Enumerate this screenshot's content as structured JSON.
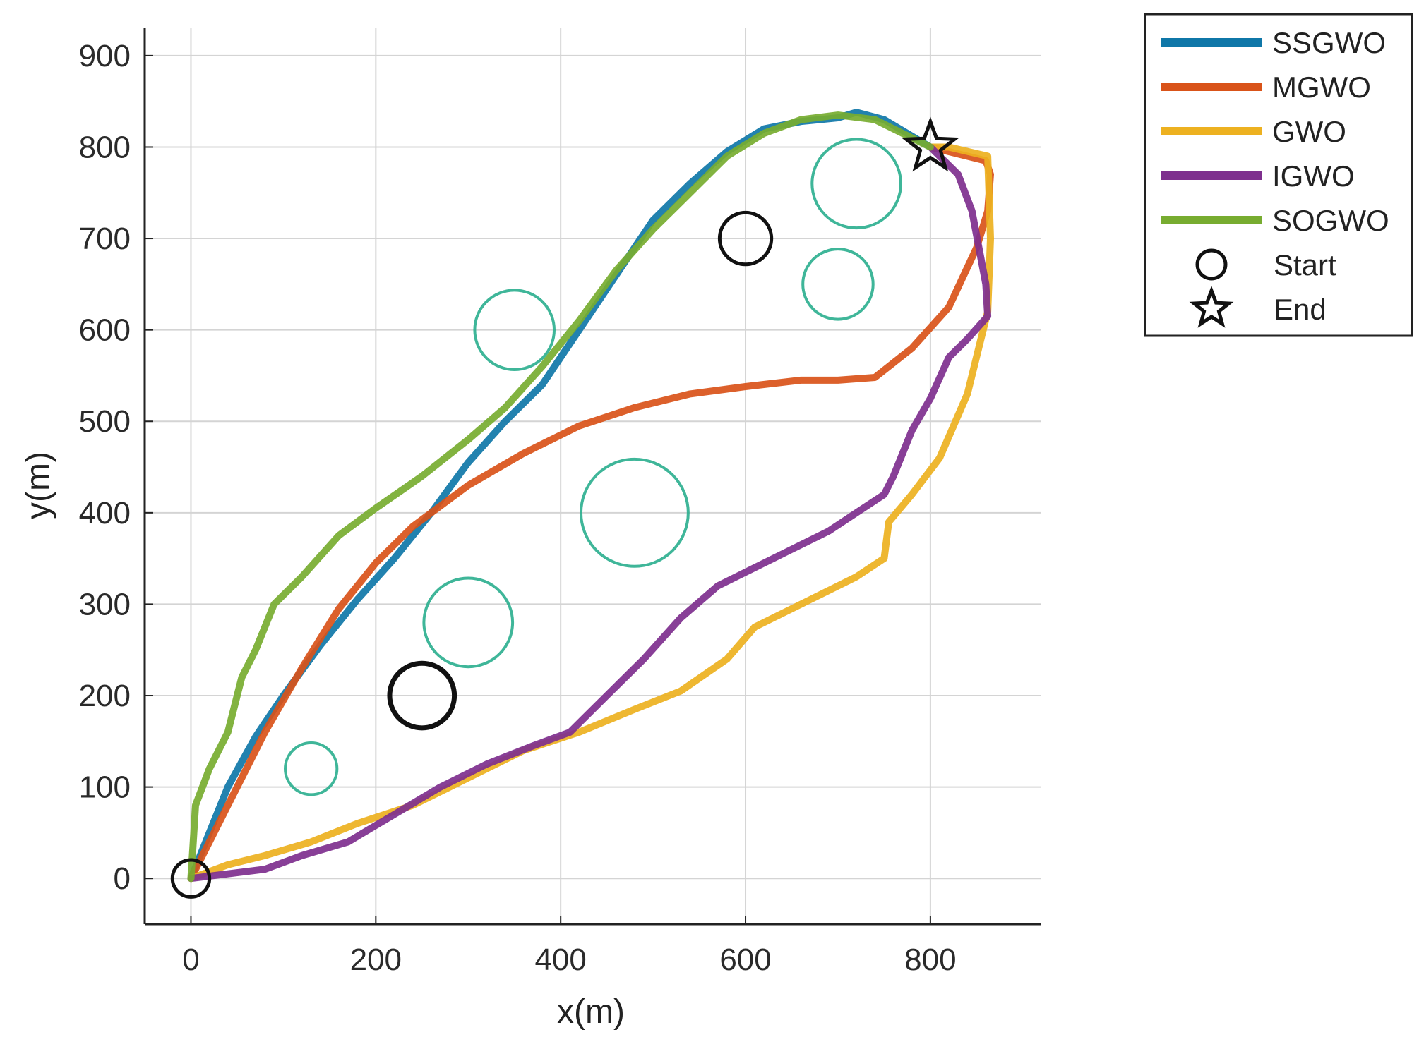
{
  "chart_data": {
    "type": "line",
    "title": "",
    "xlabel": "x(m)",
    "ylabel": "y(m)",
    "xlim": [
      -50,
      920
    ],
    "ylim": [
      -50,
      930
    ],
    "xticks": [
      0,
      200,
      400,
      600,
      800
    ],
    "yticks": [
      0,
      100,
      200,
      300,
      400,
      500,
      600,
      700,
      800,
      900
    ],
    "grid": true,
    "legend_position": "outside-top-right",
    "series": [
      {
        "name": "SSGWO",
        "color": "#0F77A8",
        "x": [
          0,
          20,
          40,
          70,
          100,
          140,
          180,
          220,
          260,
          300,
          340,
          380,
          420,
          460,
          500,
          540,
          580,
          620,
          660,
          700,
          720,
          750,
          800
        ],
        "y": [
          0,
          50,
          100,
          155,
          200,
          255,
          305,
          350,
          400,
          455,
          500,
          540,
          600,
          660,
          720,
          760,
          795,
          820,
          828,
          832,
          838,
          830,
          800
        ]
      },
      {
        "name": "MGWO",
        "color": "#D95319",
        "x": [
          0,
          40,
          80,
          120,
          160,
          200,
          240,
          300,
          360,
          420,
          480,
          540,
          600,
          660,
          700,
          740,
          780,
          820,
          850,
          862,
          865,
          860,
          800
        ],
        "y": [
          0,
          80,
          160,
          230,
          295,
          345,
          385,
          430,
          465,
          495,
          515,
          530,
          538,
          545,
          545,
          548,
          580,
          625,
          690,
          730,
          770,
          785,
          800
        ]
      },
      {
        "name": "GWO",
        "color": "#EDB120",
        "x": [
          0,
          40,
          80,
          130,
          180,
          240,
          300,
          360,
          420,
          480,
          530,
          580,
          610,
          640,
          680,
          720,
          750,
          755,
          780,
          810,
          840,
          862,
          865,
          862,
          820,
          800
        ],
        "y": [
          0,
          15,
          25,
          40,
          60,
          80,
          110,
          140,
          160,
          185,
          205,
          240,
          275,
          290,
          310,
          330,
          350,
          390,
          420,
          460,
          530,
          620,
          700,
          790,
          800,
          800
        ]
      },
      {
        "name": "IGWO",
        "color": "#7E2F8E",
        "x": [
          0,
          40,
          80,
          120,
          170,
          220,
          270,
          320,
          370,
          410,
          450,
          490,
          530,
          570,
          610,
          650,
          690,
          720,
          750,
          760,
          780,
          800,
          820,
          840,
          862,
          860,
          845,
          830,
          800
        ],
        "y": [
          0,
          5,
          10,
          25,
          40,
          70,
          100,
          125,
          145,
          160,
          200,
          240,
          285,
          320,
          340,
          360,
          380,
          400,
          420,
          440,
          490,
          525,
          570,
          590,
          615,
          650,
          730,
          770,
          800
        ]
      },
      {
        "name": "SOGWO",
        "color": "#77AC30",
        "x": [
          0,
          5,
          20,
          40,
          55,
          70,
          90,
          120,
          160,
          200,
          250,
          300,
          340,
          380,
          420,
          460,
          500,
          540,
          580,
          620,
          660,
          700,
          740,
          780,
          800
        ],
        "y": [
          0,
          80,
          120,
          160,
          220,
          250,
          300,
          330,
          375,
          405,
          440,
          480,
          515,
          560,
          610,
          665,
          710,
          750,
          790,
          815,
          830,
          835,
          830,
          810,
          800
        ]
      }
    ],
    "markers": {
      "start": {
        "label": "Start",
        "x": 0,
        "y": 0
      },
      "end": {
        "label": "End",
        "x": 800,
        "y": 800
      }
    },
    "black_circles": [
      {
        "x": 0,
        "y": 0,
        "r": 20
      },
      {
        "x": 250,
        "y": 200,
        "r": 35
      },
      {
        "x": 600,
        "y": 700,
        "r": 28
      }
    ],
    "obstacles": [
      {
        "x": 130,
        "y": 120,
        "r": 28
      },
      {
        "x": 300,
        "y": 280,
        "r": 48
      },
      {
        "x": 350,
        "y": 600,
        "r": 43
      },
      {
        "x": 480,
        "y": 400,
        "r": 58
      },
      {
        "x": 700,
        "y": 650,
        "r": 38
      },
      {
        "x": 720,
        "y": 760,
        "r": 48
      }
    ],
    "obstacle_color": "#2AAE8E"
  }
}
